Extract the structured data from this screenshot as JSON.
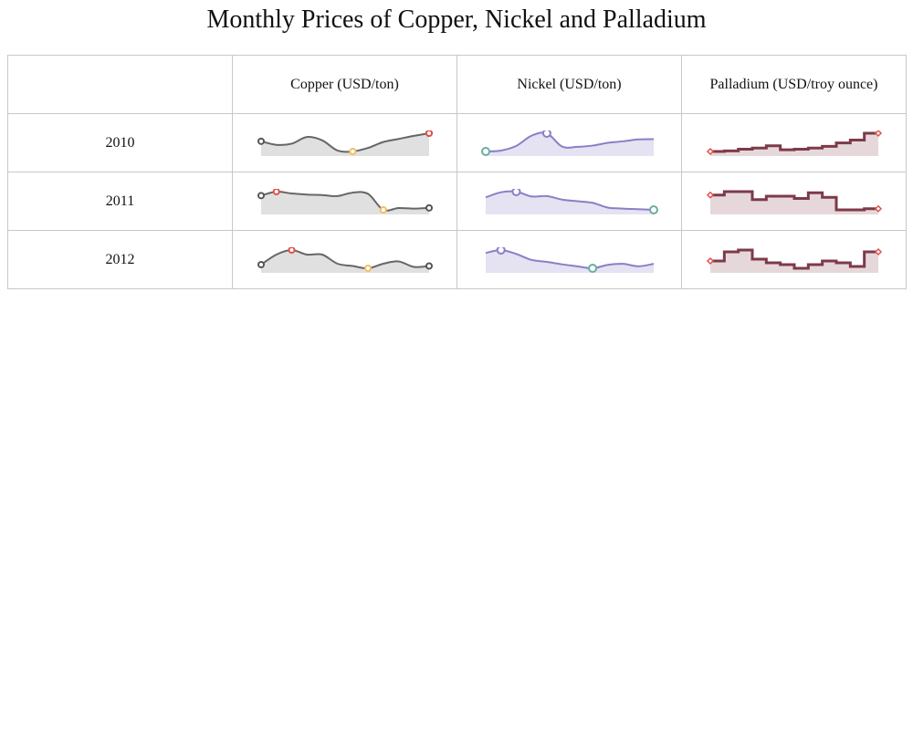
{
  "title": "Monthly Prices of Copper, Nickel and Palladium",
  "header_corner": "",
  "colors": {
    "copper_line": "#666666",
    "copper_fill": "#e0e0e0",
    "copper_start_marker": "#555555",
    "copper_end_marker": "#555555",
    "copper_high_marker": "#e0524a",
    "copper_low_marker": "#f0c060",
    "nickel_line": "#8a7fc8",
    "nickel_fill": "#e5e2f2",
    "nickel_high_marker": "#8a7fc8",
    "nickel_low_marker": "#6aaea0",
    "palladium_line": "#7d3a4a",
    "palladium_fill": "#e6d8da",
    "palladium_marker": "#e0524a",
    "grid": "#c8c8c8"
  },
  "chart_data": {
    "type": "table",
    "title": "Monthly Prices of Copper, Nickel and Palladium",
    "columns": [
      "Copper (USD/ton)",
      "Nickel (USD/ton)",
      "Palladium (USD/troy ounce)"
    ],
    "rows": [
      {
        "year": "2010",
        "copper": [
          7380,
          7230,
          7280,
          7560,
          7420,
          6990,
          6950,
          7100,
          7350,
          7480,
          7610,
          7720
        ],
        "nickel": [
          18700,
          19000,
          20500,
          23800,
          24600,
          20300,
          20200,
          20600,
          21500,
          22000,
          22600,
          22700
        ],
        "palladium": [
          420,
          430,
          460,
          480,
          520,
          450,
          460,
          480,
          510,
          570,
          620,
          740
        ]
      },
      {
        "year": "2011",
        "copper": [
          9560,
          9880,
          9730,
          9640,
          9600,
          9520,
          9800,
          9700,
          8400,
          8550,
          8500,
          8560
        ],
        "nickel": [
          22200,
          23800,
          24000,
          22500,
          22600,
          21500,
          21000,
          20500,
          19000,
          18700,
          18500,
          18300
        ],
        "palladium": [
          780,
          810,
          810,
          740,
          770,
          770,
          750,
          800,
          760,
          650,
          650,
          660
        ]
      },
      {
        "year": "2012",
        "copper": [
          8230,
          8450,
          8550,
          8450,
          8450,
          8250,
          8200,
          8150,
          8250,
          8300,
          8180,
          8200
        ],
        "nickel": [
          19200,
          19800,
          19000,
          17800,
          17400,
          16900,
          16500,
          16100,
          16800,
          17000,
          16500,
          17000
        ],
        "palladium": [
          650,
          700,
          710,
          660,
          640,
          630,
          610,
          630,
          650,
          640,
          620,
          700
        ]
      }
    ]
  }
}
